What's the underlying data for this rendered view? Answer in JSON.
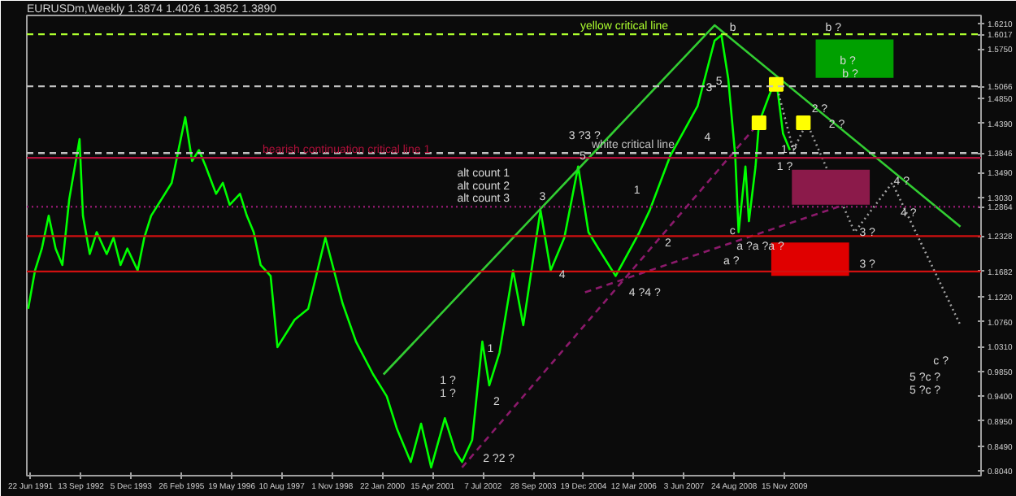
{
  "chart_data": {
    "type": "line",
    "title": "EURUSDm,Weekly  1.3874 1.4026 1.3852 1.3890",
    "xlim": [
      "1991-05-20",
      "2014-09"
    ],
    "ylim": [
      0.795,
      1.636
    ],
    "xticks": [
      {
        "value": "1991-06-22",
        "label": "22 Jun 1991"
      },
      {
        "value": "1992-09-13",
        "label": "13 Sep 1992"
      },
      {
        "value": "1993-12-05",
        "label": "5 Dec 1993"
      },
      {
        "value": "1995-02-26",
        "label": "26 Feb 1995"
      },
      {
        "value": "1996-05-19",
        "label": "19 May 1996"
      },
      {
        "value": "1997-08-10",
        "label": "10 Aug 1997"
      },
      {
        "value": "1998-11-01",
        "label": "1 Nov 1998"
      },
      {
        "value": "2000-01-22",
        "label": "22 Jan 2000"
      },
      {
        "value": "2001-04-15",
        "label": "15 Apr 2001"
      },
      {
        "value": "2002-07-07",
        "label": "7 Jul 2002"
      },
      {
        "value": "2003-09-28",
        "label": "28 Sep 2003"
      },
      {
        "value": "2004-12-19",
        "label": "19 Dec 2004"
      },
      {
        "value": "2006-03-12",
        "label": "12 Mar 2006"
      },
      {
        "value": "2007-06-03",
        "label": "3 Jun 2007"
      },
      {
        "value": "2008-08-24",
        "label": "24 Aug 2008"
      },
      {
        "value": "2009-11-15",
        "label": "15 Nov 2009"
      }
    ],
    "yticks": [
      {
        "value": 1.621,
        "label": "1.6210"
      },
      {
        "value": 1.6017,
        "label": "1.6017"
      },
      {
        "value": 1.575,
        "label": "1.5750"
      },
      {
        "value": 1.5066,
        "label": "1.5066"
      },
      {
        "value": 1.485,
        "label": "1.4850"
      },
      {
        "value": 1.439,
        "label": "1.4390"
      },
      {
        "value": 1.3846,
        "label": "1.3846"
      },
      {
        "value": 1.349,
        "label": "1.3490"
      },
      {
        "value": 1.303,
        "label": "1.3030"
      },
      {
        "value": 1.2864,
        "label": "1.2864"
      },
      {
        "value": 1.2328,
        "label": "1.2328"
      },
      {
        "value": 1.1682,
        "label": "1.1682"
      },
      {
        "value": 1.122,
        "label": "1.1220"
      },
      {
        "value": 1.076,
        "label": "1.0760"
      },
      {
        "value": 1.031,
        "label": "1.0310"
      },
      {
        "value": 0.985,
        "label": "0.9850"
      },
      {
        "value": 0.94,
        "label": "0.9400"
      },
      {
        "value": 0.895,
        "label": "0.8950"
      },
      {
        "value": 0.849,
        "label": "0.8490"
      },
      {
        "value": 0.804,
        "label": "0.8040"
      }
    ],
    "series": [
      {
        "color": "#00ff00",
        "x": [
          "1991-06",
          "1991-08",
          "1991-10",
          "1991-12",
          "1992-02",
          "1992-04",
          "1992-06",
          "1992-09",
          "1992-10",
          "1992-12",
          "1993-02",
          "1993-05",
          "1993-07",
          "1993-09",
          "1993-11",
          "1994-02",
          "1994-04",
          "1994-06",
          "1994-09",
          "1994-12",
          "1995-04",
          "1995-06",
          "1995-08",
          "1995-10",
          "1996-01",
          "1996-03",
          "1996-05",
          "1996-08",
          "1996-10",
          "1996-12",
          "1997-02",
          "1997-05",
          "1997-07",
          "1997-12",
          "1998-04",
          "1998-09",
          "1999-02",
          "1999-06",
          "1999-11",
          "2000-03",
          "2000-06",
          "2000-10",
          "2001-01",
          "2001-04",
          "2001-08",
          "2001-11",
          "2002-01",
          "2002-04",
          "2002-07",
          "2002-09",
          "2002-12",
          "2003-04",
          "2003-07",
          "2003-12",
          "2004-03",
          "2004-07",
          "2004-11",
          "2005-02",
          "2005-05",
          "2005-10",
          "2006-05",
          "2006-08",
          "2007-02",
          "2007-10",
          "2008-03",
          "2008-05",
          "2008-07",
          "2008-09",
          "2008-10",
          "2008-12",
          "2009-01",
          "2009-03",
          "2009-04",
          "2009-07",
          "2009-09",
          "2009-11",
          "2010-01"
        ],
        "values": [
          1.1,
          1.17,
          1.21,
          1.27,
          1.21,
          1.18,
          1.3,
          1.41,
          1.27,
          1.2,
          1.24,
          1.2,
          1.23,
          1.18,
          1.21,
          1.17,
          1.23,
          1.27,
          1.3,
          1.33,
          1.45,
          1.37,
          1.39,
          1.36,
          1.31,
          1.33,
          1.29,
          1.31,
          1.27,
          1.24,
          1.18,
          1.16,
          1.03,
          1.08,
          1.1,
          1.23,
          1.11,
          1.04,
          0.98,
          0.94,
          0.88,
          0.82,
          0.89,
          0.81,
          0.9,
          0.84,
          0.82,
          0.86,
          1.04,
          0.96,
          1.02,
          1.17,
          1.07,
          1.28,
          1.17,
          1.23,
          1.36,
          1.24,
          1.21,
          1.16,
          1.24,
          1.28,
          1.38,
          1.47,
          1.59,
          1.6,
          1.52,
          1.38,
          1.24,
          1.36,
          1.26,
          1.36,
          1.44,
          1.49,
          1.52,
          1.42,
          1.39
        ]
      },
      {
        "type": "line",
        "color": "#32cd32",
        "x": [
          "2000-02",
          "2008-03",
          "2014-03"
        ],
        "values": [
          0.98,
          1.618,
          1.25
        ]
      },
      {
        "type": "line",
        "color": "#8b1a6b",
        "line_style": "dashed",
        "x": [
          "2002-01",
          "2009-04"
        ],
        "values": [
          0.81,
          1.44
        ]
      },
      {
        "type": "line",
        "color": "#8b1a6b",
        "line_style": "dashed",
        "x": [
          "2005-01",
          "2011-05"
        ],
        "values": [
          1.13,
          1.29
        ]
      },
      {
        "type": "line",
        "color": "#a0a0a0",
        "line_style": "dotted",
        "x": [
          "2009-09",
          "2010-02",
          "2010-06",
          "2011-08",
          "2012-07",
          "2014-03"
        ],
        "values": [
          1.51,
          1.39,
          1.44,
          1.24,
          1.33,
          1.07
        ]
      },
      {
        "type": "scatter",
        "marker": "square",
        "color": "#ffff00",
        "x": [
          "2009-04",
          "2010-05",
          "2009-09"
        ],
        "values": [
          1.44,
          1.44,
          1.51
        ]
      },
      {
        "type": "bar",
        "color": "#00a000",
        "x": [
          "2011-08"
        ],
        "base": [
          1.522
        ],
        "values": [
          0.07
        ]
      },
      {
        "type": "bar",
        "color": "#8b1a4a",
        "x": [
          "2011-01"
        ],
        "base": [
          1.29
        ],
        "values": [
          0.064
        ]
      },
      {
        "type": "bar",
        "color": "#e00000",
        "x": [
          "2010-07"
        ],
        "base": [
          1.16
        ],
        "values": [
          0.061
        ]
      }
    ],
    "ref_lines": [
      {
        "axis": "y",
        "value": 1.6017,
        "label": "yellow critical line",
        "color": "#adff2f",
        "line_style": "dashed"
      },
      {
        "axis": "y",
        "value": 1.5066,
        "color": "#c0c0c0",
        "line_style": "dashed"
      },
      {
        "axis": "y",
        "value": 1.3846,
        "label": "white critical line",
        "color": "#c0c0c0",
        "line_style": "dashed"
      },
      {
        "axis": "y",
        "value": 1.3758,
        "label": "bearish continuation critical line 1",
        "color": "#b0103a"
      },
      {
        "axis": "y",
        "value": 1.2864,
        "color": "#8b1a6b",
        "line_style": "dotted"
      },
      {
        "axis": "y",
        "value": 1.2328,
        "color": "#d01010"
      },
      {
        "axis": "y",
        "value": 1.1682,
        "color": "#d01010"
      }
    ],
    "annotations": [
      "alt count 1",
      "alt count 2",
      "alt count 3",
      {
        "text": "b",
        "x": "2008-06",
        "y": 1.612
      },
      {
        "text": "b ?",
        "x": "2010-10",
        "y": 1.612
      },
      "b ?",
      {
        "text": "b ?",
        "x": "2011-03",
        "y": 1.528
      },
      {
        "text": "2 ?",
        "x": "2010-06",
        "y": 1.464
      },
      {
        "text": "2 ?",
        "x": "2010-11",
        "y": 1.435
      },
      {
        "text": "1 ?",
        "x": "2009-09",
        "y": 1.389
      },
      "1 ?",
      "3 ?3 ?",
      "3",
      {
        "text": "5",
        "x": "2004-10",
        "y": 1.38
      },
      "1",
      {
        "text": "2",
        "x": "2006-11",
        "y": 1.221
      },
      {
        "text": "3",
        "x": "2007-11",
        "y": 1.505
      },
      "4",
      "5",
      {
        "text": "c",
        "x": "2008-06",
        "y": 1.241
      },
      {
        "text": "a ?a ?a ?",
        "x": "2008-08",
        "y": 1.212
      },
      "a ?",
      {
        "text": "4",
        "x": "2004-04",
        "y": 1.163
      },
      "4 ?4 ?",
      {
        "text": "3 ?",
        "x": "2011-08",
        "y": 1.238
      },
      {
        "text": "3 ?",
        "x": "2011-08",
        "y": 1.18
      },
      {
        "text": "4 ?",
        "x": "2012-06",
        "y": 1.331
      },
      {
        "text": "4 ?",
        "x": "2012-08",
        "y": 1.273
      },
      "c ?",
      "5 ?c ?",
      "5 ?c ?",
      "1 ?",
      "1 ?",
      {
        "text": "1",
        "x": "2002-07",
        "y": 1.029
      },
      "2",
      "2 ?2 ?"
    ]
  }
}
